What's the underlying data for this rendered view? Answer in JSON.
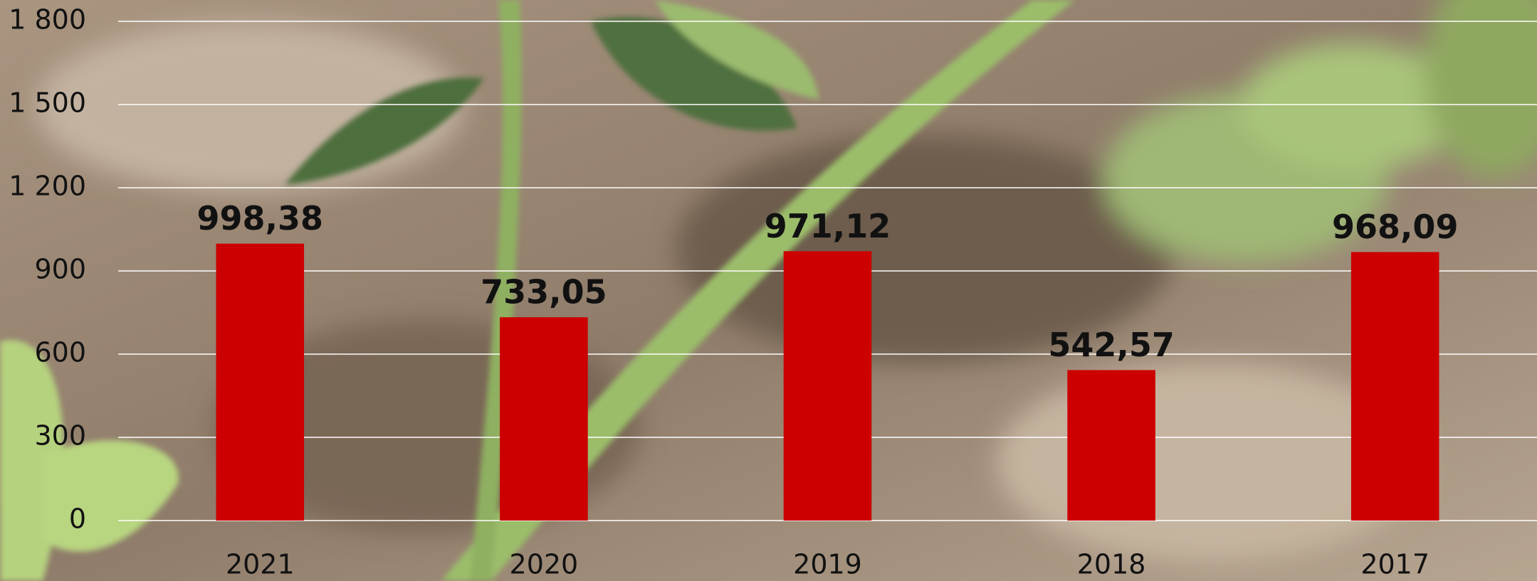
{
  "chart_data": {
    "type": "bar",
    "categories": [
      "2021",
      "2020",
      "2019",
      "2018",
      "2017"
    ],
    "values": [
      998.38,
      733.05,
      971.12,
      542.57,
      968.09
    ],
    "value_labels": [
      "998,38",
      "733,05",
      "971,12",
      "542,57",
      "968,09"
    ],
    "color": "#cc0000",
    "ylim": [
      0,
      1800
    ],
    "yticks": [
      0,
      300,
      600,
      900,
      {
        "value": 1200,
        "label": "1 200"
      },
      {
        "value": 1500,
        "label": "1 500"
      },
      {
        "value": 1800,
        "label": "1 800"
      }
    ],
    "grid": true
  }
}
